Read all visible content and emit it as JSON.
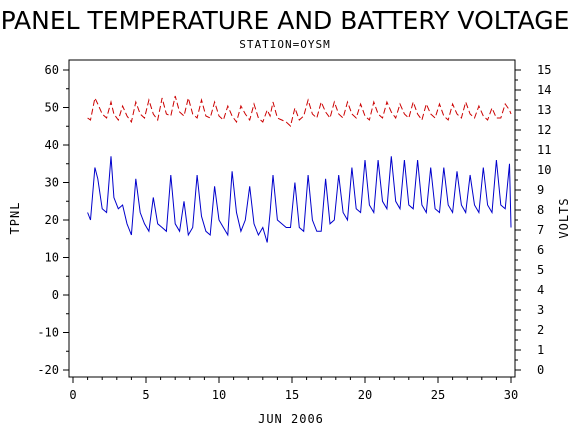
{
  "chart_data": {
    "type": "line",
    "title": "PANEL TEMPERATURE AND BATTERY VOLTAGE",
    "subtitle": "STATION=OYSM",
    "xlabel": "JUN 2006",
    "ylabel_left": "TPNL",
    "ylabel_right": "VOLTS",
    "xlim": [
      0,
      30
    ],
    "ylim_left": [
      -20,
      60
    ],
    "ylim_right": [
      0,
      15
    ],
    "x_ticks": [
      0,
      5,
      10,
      15,
      20,
      25,
      30
    ],
    "y_ticks_left": [
      -20,
      -10,
      0,
      10,
      20,
      30,
      40,
      50,
      60
    ],
    "y_ticks_right": [
      0,
      1,
      2,
      3,
      4,
      5,
      6,
      7,
      8,
      9,
      10,
      11,
      12,
      13,
      14,
      15
    ],
    "grid": false,
    "series": [
      {
        "axis": "left",
        "color": "#0000cc",
        "style": "solid",
        "x": [
          1.0,
          1.2,
          1.5,
          1.7,
          2.0,
          2.3,
          2.6,
          2.8,
          3.1,
          3.4,
          3.7,
          4.0,
          4.3,
          4.6,
          4.9,
          5.2,
          5.5,
          5.8,
          6.1,
          6.4,
          6.7,
          7.0,
          7.3,
          7.6,
          7.9,
          8.2,
          8.5,
          8.8,
          9.1,
          9.4,
          9.7,
          10.0,
          10.3,
          10.6,
          10.9,
          11.2,
          11.5,
          11.8,
          12.1,
          12.4,
          12.7,
          13.0,
          13.3,
          13.5,
          13.7,
          14.0,
          14.3,
          14.6,
          14.9,
          15.2,
          15.5,
          15.8,
          16.1,
          16.4,
          16.7,
          17.0,
          17.3,
          17.6,
          17.9,
          18.2,
          18.5,
          18.8,
          19.1,
          19.4,
          19.7,
          20.0,
          20.3,
          20.6,
          20.9,
          21.2,
          21.5,
          21.8,
          22.1,
          22.4,
          22.7,
          23.0,
          23.3,
          23.6,
          23.9,
          24.2,
          24.5,
          24.8,
          25.1,
          25.4,
          25.7,
          26.0,
          26.3,
          26.6,
          26.9,
          27.2,
          27.5,
          27.8,
          28.1,
          28.4,
          28.7,
          29.0,
          29.3,
          29.6,
          29.9,
          30.0
        ],
        "values": [
          22,
          20,
          34,
          31,
          23,
          22,
          37,
          26,
          23,
          24,
          19,
          16,
          31,
          22,
          19,
          17,
          26,
          19,
          18,
          17,
          32,
          19,
          17,
          25,
          16,
          18,
          32,
          21,
          17,
          16,
          29,
          20,
          18,
          16,
          33,
          22,
          17,
          20,
          29,
          19,
          16,
          18,
          14,
          22,
          32,
          20,
          19,
          18,
          18,
          30,
          18,
          17,
          32,
          20,
          17,
          17,
          31,
          19,
          20,
          32,
          22,
          20,
          34,
          23,
          22,
          36,
          24,
          22,
          36,
          25,
          23,
          37,
          25,
          23,
          36,
          24,
          23,
          36,
          24,
          22,
          34,
          23,
          22,
          34,
          24,
          22,
          33,
          24,
          22,
          32,
          24,
          22,
          34,
          24,
          22,
          36,
          24,
          23,
          35,
          18
        ]
      },
      {
        "axis": "right",
        "color": "#cc0000",
        "style": "dashed",
        "x": [
          1.0,
          1.2,
          1.5,
          1.7,
          2.0,
          2.3,
          2.6,
          2.8,
          3.1,
          3.4,
          3.7,
          4.0,
          4.3,
          4.6,
          4.9,
          5.2,
          5.5,
          5.8,
          6.1,
          6.4,
          6.7,
          7.0,
          7.3,
          7.6,
          7.9,
          8.2,
          8.5,
          8.8,
          9.1,
          9.4,
          9.7,
          10.0,
          10.3,
          10.6,
          10.9,
          11.2,
          11.5,
          11.8,
          12.1,
          12.4,
          12.7,
          13.0,
          13.3,
          13.5,
          13.7,
          14.0,
          14.3,
          14.6,
          14.9,
          15.2,
          15.5,
          15.8,
          16.1,
          16.4,
          16.7,
          17.0,
          17.3,
          17.6,
          17.9,
          18.2,
          18.5,
          18.8,
          19.1,
          19.4,
          19.7,
          20.0,
          20.3,
          20.6,
          20.9,
          21.2,
          21.5,
          21.8,
          22.1,
          22.4,
          22.7,
          23.0,
          23.3,
          23.6,
          23.9,
          24.2,
          24.5,
          24.8,
          25.1,
          25.4,
          25.7,
          26.0,
          26.3,
          26.6,
          26.9,
          27.2,
          27.5,
          27.8,
          28.1,
          28.4,
          28.7,
          29.0,
          29.3,
          29.6,
          29.9,
          30.0
        ],
        "values": [
          12.6,
          12.5,
          13.6,
          13.3,
          12.8,
          12.6,
          13.4,
          12.8,
          12.5,
          13.2,
          12.7,
          12.4,
          13.4,
          12.8,
          12.6,
          13.5,
          12.8,
          12.5,
          13.6,
          12.8,
          12.7,
          13.7,
          12.9,
          12.7,
          13.6,
          12.8,
          12.6,
          13.5,
          12.7,
          12.6,
          13.4,
          12.7,
          12.5,
          13.2,
          12.7,
          12.4,
          13.2,
          12.8,
          12.5,
          13.3,
          12.6,
          12.4,
          13.0,
          12.7,
          13.4,
          12.6,
          12.5,
          12.4,
          12.2,
          13.1,
          12.5,
          12.7,
          13.5,
          12.8,
          12.6,
          13.4,
          12.9,
          12.6,
          13.4,
          12.8,
          12.6,
          13.4,
          12.8,
          12.6,
          13.3,
          12.7,
          12.5,
          13.4,
          12.8,
          12.6,
          13.4,
          12.9,
          12.6,
          13.3,
          12.8,
          12.6,
          13.4,
          12.8,
          12.5,
          13.3,
          12.8,
          12.6,
          13.3,
          12.7,
          12.5,
          13.3,
          12.8,
          12.6,
          13.4,
          12.8,
          12.6,
          13.2,
          12.7,
          12.5,
          13.1,
          12.6,
          12.6,
          13.3,
          13.0,
          12.8
        ]
      }
    ]
  }
}
